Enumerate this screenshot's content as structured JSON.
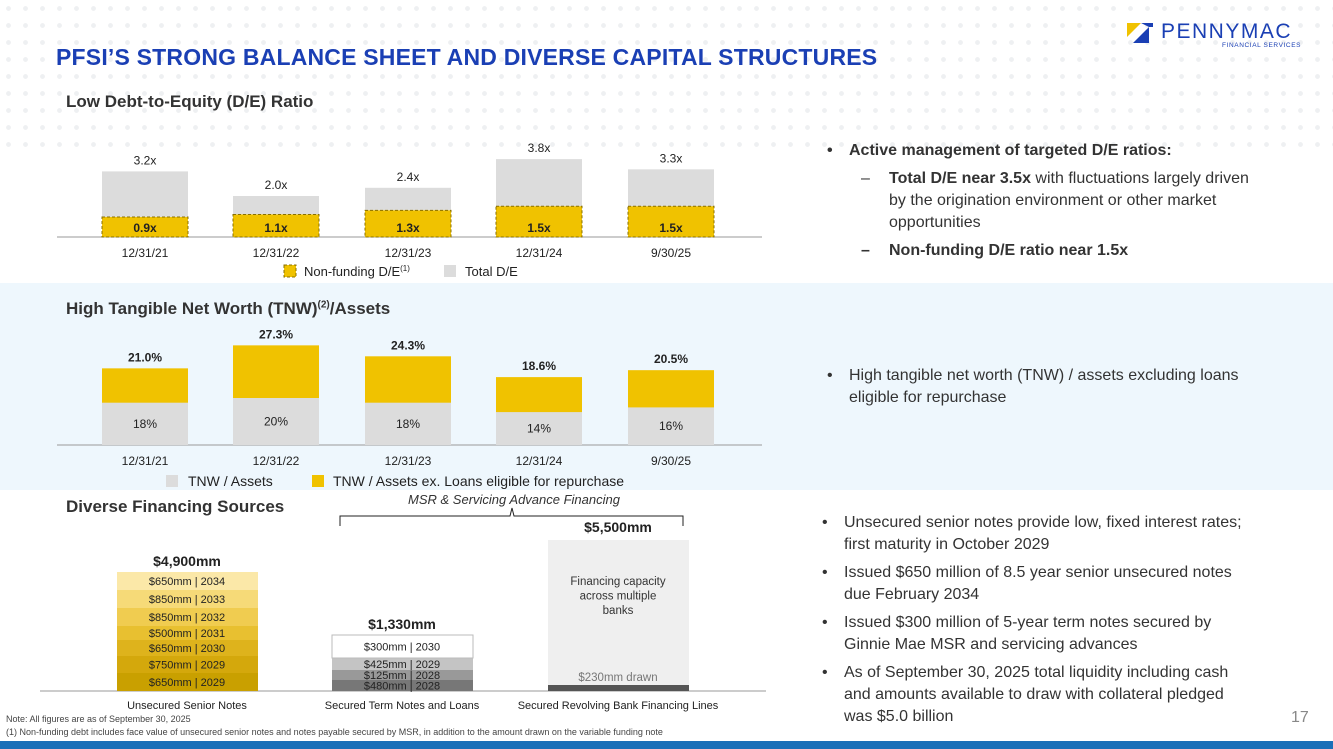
{
  "title": "PFSI’S STRONG BALANCE SHEET AND DIVERSE CAPITAL STRUCTURES",
  "logo": {
    "name": "PENNYMAC",
    "sub": "FINANCIAL SERVICES"
  },
  "colors": {
    "accent": "#1a3fb4",
    "gold": "#f0c200",
    "gray": "#dcdcdc"
  },
  "section1": {
    "heading": "Low Debt-to-Equity (D/E) Ratio",
    "chart_data": {
      "type": "bar",
      "categories": [
        "12/31/21",
        "12/31/22",
        "12/31/23",
        "12/31/24",
        "9/30/25"
      ],
      "series": [
        {
          "name": "Non-funding D/E",
          "values": [
            0.9,
            1.1,
            1.3,
            1.5,
            1.5
          ],
          "labels": [
            "0.9x",
            "1.1x",
            "1.3x",
            "1.5x",
            "1.5x"
          ]
        },
        {
          "name": "Total D/E",
          "values": [
            3.2,
            2.0,
            2.4,
            3.8,
            3.3
          ],
          "labels": [
            "3.2x",
            "2.0x",
            "2.4x",
            "3.8x",
            "3.3x"
          ]
        }
      ],
      "legend": [
        "Non-funding D/E",
        "(1)",
        "Total D/E"
      ]
    }
  },
  "section2": {
    "heading": "High Tangible Net Worth (TNW)",
    "heading_sup": "(2)",
    "heading_tail": "/Assets",
    "chart_data": {
      "type": "bar",
      "categories": [
        "12/31/21",
        "12/31/22",
        "12/31/23",
        "12/31/24",
        "9/30/25"
      ],
      "series": [
        {
          "name": "TNW / Assets",
          "values": [
            18,
            20,
            18,
            14,
            16
          ],
          "labels": [
            "18%",
            "20%",
            "18%",
            "14%",
            "16%"
          ]
        },
        {
          "name": "TNW / Assets ex. Loans eligible for repurchase",
          "values": [
            21.0,
            27.3,
            24.3,
            18.6,
            20.5
          ],
          "labels": [
            "21.0%",
            "27.3%",
            "24.3%",
            "18.6%",
            "20.5%"
          ]
        }
      ]
    }
  },
  "section3": {
    "heading": "Diverse Financing Sources",
    "bracket_label": "MSR & Servicing Advance Financing",
    "chart_data": {
      "type": "bar",
      "categories": [
        "Unsecured Senior Notes",
        "Secured Term Notes and Loans",
        "Secured Revolving Bank Financing Lines"
      ],
      "totals": [
        "$4,900mm",
        "$1,330mm",
        "$5,500mm"
      ],
      "stack1": [
        "$650mm | 2029",
        "$750mm | 2029",
        "$650mm | 2030",
        "$500mm | 2031",
        "$850mm | 2032",
        "$850mm | 2033",
        "$650mm | 2034"
      ],
      "stack2": [
        "$480mm | 2028",
        "$125mm | 2028",
        "$425mm | 2029",
        "$300mm | 2030"
      ],
      "revolver_capacity_lines": [
        "Financing capacity",
        "across multiple",
        "banks"
      ],
      "revolver_drawn": "$230mm drawn"
    }
  },
  "bullets1": {
    "main": "Active management of targeted D/E ratios:",
    "sub1_bold": "Total D/E near 3.5x",
    "sub1_rest_l1": " with fluctuations largely driven",
    "sub1_rest_l2": "by the origination environment or other market",
    "sub1_rest_l3": "opportunities",
    "sub2": "Non-funding D/E ratio near 1.5x"
  },
  "bullets2": {
    "l1": "High tangible net worth (TNW) / assets excluding loans",
    "l2": "eligible for repurchase"
  },
  "bullets3": [
    {
      "l1": "Unsecured senior notes provide low, fixed interest rates;",
      "l2": "first maturity in October 2029"
    },
    {
      "l1": "Issued $650 million of 8.5 year senior unsecured notes",
      "l2": "due February 2034"
    },
    {
      "l1": "Issued $300 million of 5-year term notes secured by",
      "l2": "Ginnie Mae MSR and servicing advances"
    },
    {
      "l1": "As of September 30, 2025 total liquidity including cash",
      "l2": "and amounts available to draw with collateral pledged",
      "l3": "was $5.0 billion"
    }
  ],
  "footnotes": {
    "note": "Note: All figures are as of September 30, 2025",
    "fn1": "(1) Non-funding debt includes face value of unsecured senior notes and notes payable secured by MSR, in addition to the amount drawn on the variable funding note"
  },
  "page_number": "17"
}
